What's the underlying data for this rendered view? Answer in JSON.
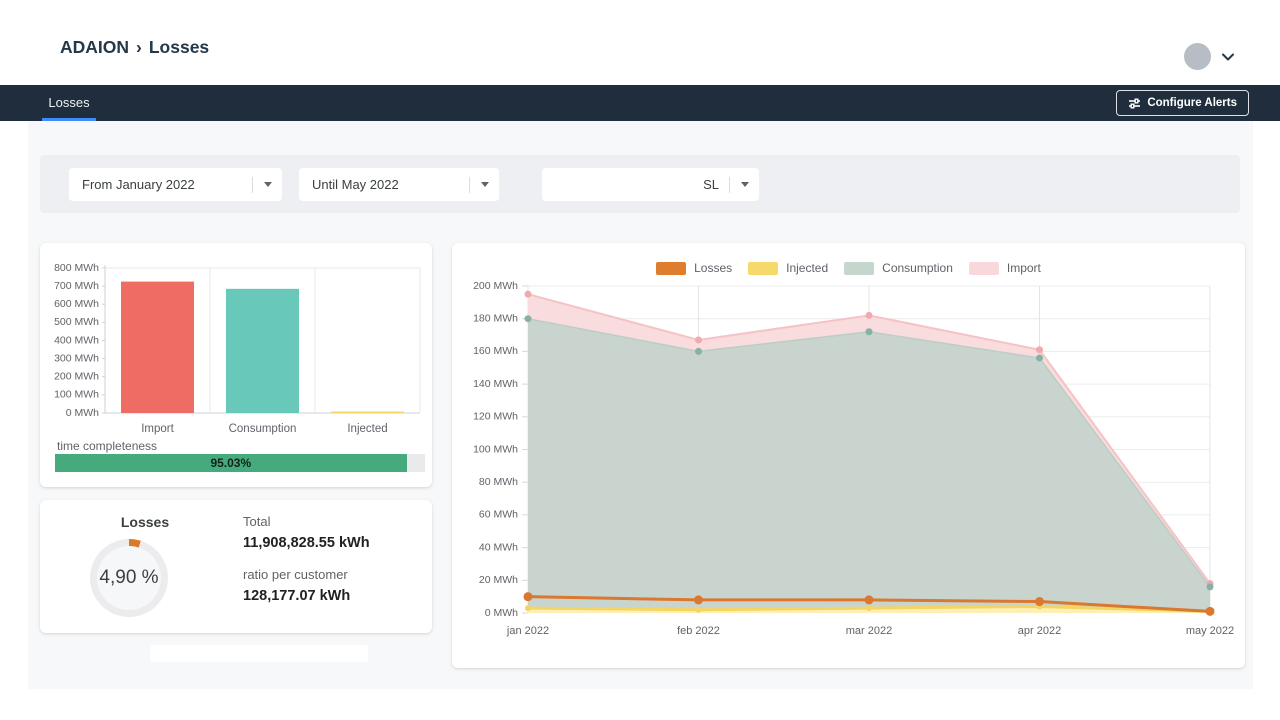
{
  "header": {
    "breadcrumb": {
      "root": "ADAION",
      "separator": "›",
      "current": "Losses"
    }
  },
  "navbar": {
    "tab": "Losses",
    "configure_alerts": "Configure Alerts"
  },
  "filters": {
    "from": "From January 2022",
    "until": "Until May 2022",
    "region": "SL"
  },
  "completeness": {
    "label": "time completeness",
    "value_label": "95.03%",
    "percent": 95.03
  },
  "losses_card": {
    "title": "Losses",
    "percent_label": "4,90 %",
    "percent": 4.9,
    "total_label": "Total",
    "total_value": "11,908,828.55 kWh",
    "ratio_label": "ratio per customer",
    "ratio_value": "128,177.07 kWh"
  },
  "colors": {
    "navbar": "#1f2d3d",
    "accent_blue": "#3e8bfb",
    "progress_green": "#45ab7d",
    "donut_orange": "#dd7a28",
    "donut_track": "#ececee"
  },
  "chart_data": [
    {
      "type": "bar",
      "title": "Energy totals",
      "categories": [
        "Import",
        "Consumption",
        "Injected"
      ],
      "values": [
        725,
        685,
        8
      ],
      "unit": "MWh",
      "ylim": [
        0,
        800
      ],
      "ytick_step": 100,
      "bar_colors": [
        "#ef6c64",
        "#68c8b9",
        "#f6d765"
      ],
      "grid": true,
      "legend_position": "none"
    },
    {
      "type": "area",
      "title": "Monthly energy by category",
      "categories": [
        "jan 2022",
        "feb 2022",
        "mar 2022",
        "apr 2022",
        "may 2022"
      ],
      "unit": "MWh",
      "ylim": [
        0,
        200
      ],
      "ytick_step": 20,
      "grid": true,
      "legend_position": "top",
      "legend": [
        {
          "label": "Losses",
          "color": "#dd7d2d"
        },
        {
          "label": "Injected",
          "color": "#f5d96a"
        },
        {
          "label": "Consumption",
          "color": "#c5d6cd"
        },
        {
          "label": "Import",
          "color": "#f8d8da"
        }
      ],
      "series": [
        {
          "name": "Import",
          "kind": "area",
          "values": [
            195,
            167,
            182,
            161,
            18
          ],
          "fill": "#f9dcdd",
          "line": "#f5c3c6",
          "marker": "#f0a9ac",
          "marker_r": 3.5,
          "line_w": 2
        },
        {
          "name": "Consumption",
          "kind": "area",
          "values": [
            180,
            160,
            172,
            156,
            16
          ],
          "fill": "#c9d4ce",
          "line": "#bccdc6",
          "marker": "#85b2a6",
          "marker_r": 3.5,
          "line_w": 1.5
        },
        {
          "name": "Injected",
          "kind": "area",
          "values": [
            3,
            2,
            3,
            4,
            1
          ],
          "fill": "#fcf0b6",
          "line": "#f3d464",
          "marker": "#f3d464",
          "marker_r": 3,
          "line_w": 3
        },
        {
          "name": "Losses",
          "kind": "line",
          "values": [
            10,
            8,
            8,
            7,
            1
          ],
          "fill": "none",
          "line": "#d9782e",
          "marker": "#d9782e",
          "marker_r": 4.5,
          "line_w": 3
        }
      ]
    }
  ]
}
